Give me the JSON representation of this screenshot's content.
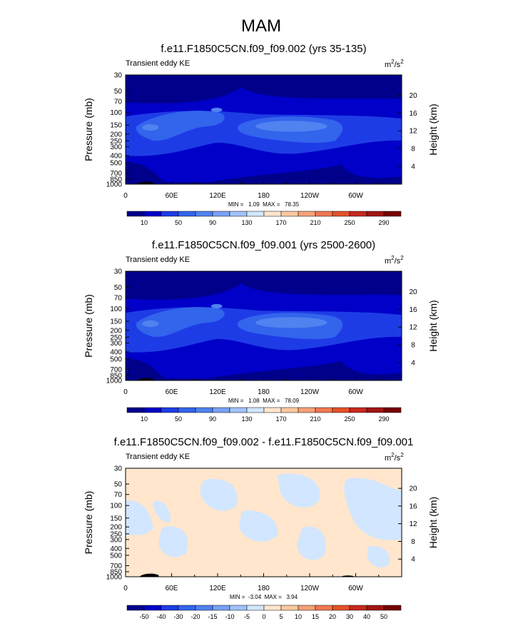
{
  "page_title": "MAM",
  "chart_data": [
    {
      "type": "heatmap",
      "title": "f.e11.F1850C5CN.f09_f09.002 (yrs 35-135)",
      "left_label": "Transient eddy KE",
      "units_base": "m",
      "units_exp1": "2",
      "units_mid": "/s",
      "units_exp2": "2",
      "ylabel": "Pressure (mb)",
      "y2label": "Height (km)",
      "x_ticks": [
        "0",
        "60E",
        "120E",
        "180",
        "120W",
        "60W"
      ],
      "y_ticks": [
        "30",
        "50",
        "70",
        "100",
        "150",
        "200",
        "250",
        "300",
        "400",
        "500",
        "700",
        "850",
        "1000"
      ],
      "y2_ticks": [
        "20",
        "16",
        "12",
        "8",
        "4"
      ],
      "min_max": "MIN =   1.09  MAX =   78.35",
      "min": 1.09,
      "max": 78.35,
      "colorbar_labels": [
        "10",
        "50",
        "90",
        "130",
        "170",
        "210",
        "250",
        "290"
      ],
      "colorbar_colors": [
        "#00008b",
        "#0000c8",
        "#1e3ce6",
        "#3264ec",
        "#5082f0",
        "#78a0f4",
        "#a0c2f8",
        "#d2e6ff",
        "#ffe6cd",
        "#fac8a0",
        "#f5a078",
        "#f07850",
        "#e65028",
        "#c8281e",
        "#a01414",
        "#780000"
      ],
      "fill": {
        "base": "#0000c8",
        "band": "#1e3ce6",
        "core": "#3264ec",
        "peak": "#5082f0",
        "top": "#00008b",
        "terrain": "#000000"
      }
    },
    {
      "type": "heatmap",
      "title": "f.e11.F1850C5CN.f09_f09.001 (yrs 2500-2600)",
      "left_label": "Transient eddy KE",
      "units_base": "m",
      "units_exp1": "2",
      "units_mid": "/s",
      "units_exp2": "2",
      "ylabel": "Pressure (mb)",
      "y2label": "Height (km)",
      "x_ticks": [
        "0",
        "60E",
        "120E",
        "180",
        "120W",
        "60W"
      ],
      "y_ticks": [
        "30",
        "50",
        "70",
        "100",
        "150",
        "200",
        "250",
        "300",
        "400",
        "500",
        "700",
        "850",
        "1000"
      ],
      "y2_ticks": [
        "20",
        "16",
        "12",
        "8",
        "4"
      ],
      "min_max": "MIN =   1.08  MAX =   78.09",
      "min": 1.08,
      "max": 78.09,
      "colorbar_labels": [
        "10",
        "50",
        "90",
        "130",
        "170",
        "210",
        "250",
        "290"
      ],
      "colorbar_colors": [
        "#00008b",
        "#0000c8",
        "#1e3ce6",
        "#3264ec",
        "#5082f0",
        "#78a0f4",
        "#a0c2f8",
        "#d2e6ff",
        "#ffe6cd",
        "#fac8a0",
        "#f5a078",
        "#f07850",
        "#e65028",
        "#c8281e",
        "#a01414",
        "#780000"
      ],
      "fill": {
        "base": "#0000c8",
        "band": "#1e3ce6",
        "core": "#3264ec",
        "peak": "#5082f0",
        "top": "#00008b",
        "terrain": "#000000"
      }
    },
    {
      "type": "heatmap",
      "title": "f.e11.F1850C5CN.f09_f09.002 - f.e11.F1850C5CN.f09_f09.001",
      "left_label": "Transient eddy KE",
      "units_base": "m",
      "units_exp1": "2",
      "units_mid": "/s",
      "units_exp2": "2",
      "ylabel": "Pressure (mb)",
      "y2label": "Height (km)",
      "x_ticks": [
        "0",
        "60E",
        "120E",
        "180",
        "120W",
        "60W"
      ],
      "y_ticks": [
        "30",
        "50",
        "70",
        "100",
        "150",
        "200",
        "250",
        "300",
        "400",
        "500",
        "700",
        "850",
        "1000"
      ],
      "y2_ticks": [
        "20",
        "16",
        "12",
        "8",
        "4"
      ],
      "min_max": "MIN =  -3.04  MAX =   3.94",
      "min": -3.04,
      "max": 3.94,
      "colorbar_labels": [
        "-50",
        "-40",
        "-30",
        "-20",
        "-15",
        "-10",
        "-5",
        "0",
        "5",
        "10",
        "15",
        "20",
        "30",
        "40",
        "50"
      ],
      "colorbar_colors": [
        "#00008b",
        "#0000c8",
        "#1e3ce6",
        "#3264ec",
        "#5082f0",
        "#78a0f4",
        "#a0c2f8",
        "#d2e6ff",
        "#ffe6cd",
        "#fac8a0",
        "#f5a078",
        "#f07850",
        "#e65028",
        "#c8281e",
        "#a01414",
        "#780000"
      ],
      "fill": {
        "pos": "#ffe6cd",
        "neg": "#d2e6ff",
        "terrain": "#000000"
      }
    }
  ]
}
